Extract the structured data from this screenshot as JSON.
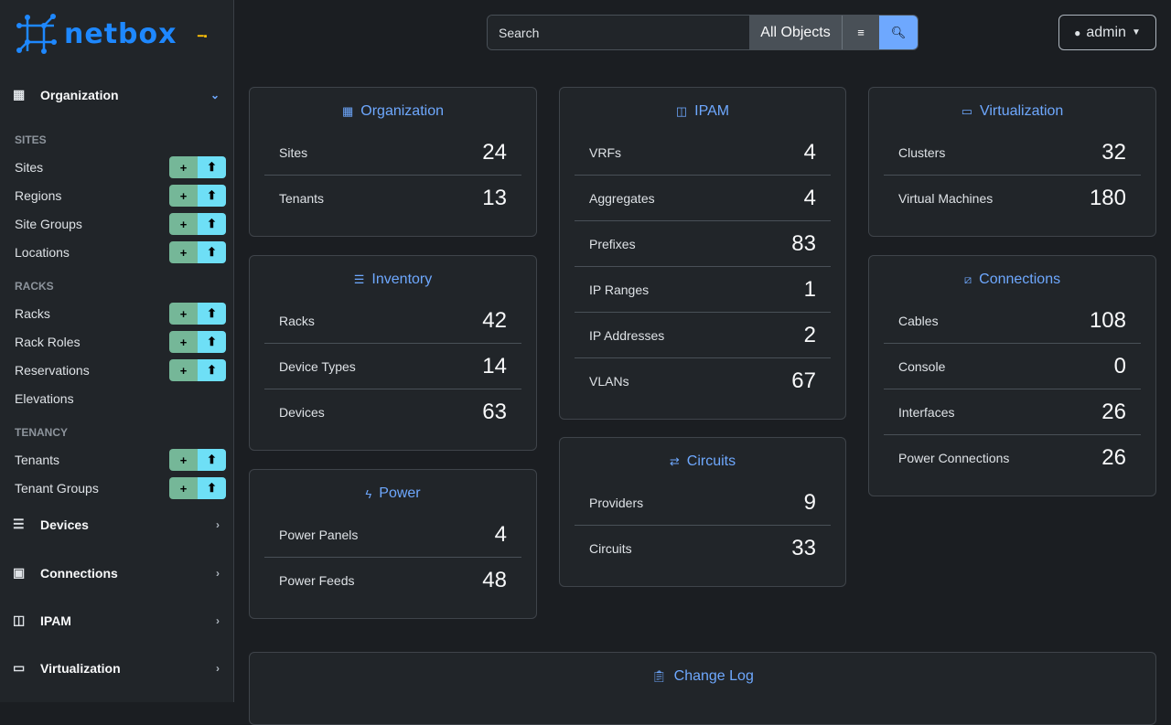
{
  "brand": {
    "name": "netbox",
    "accent": "#1e88ff"
  },
  "search": {
    "placeholder": "Search",
    "scope": "All Objects"
  },
  "user": {
    "name": "admin"
  },
  "sidebar": {
    "organization": "Organization",
    "sections": [
      {
        "title": "SITES",
        "items": [
          {
            "label": "Sites",
            "actions": true
          },
          {
            "label": "Regions",
            "actions": true
          },
          {
            "label": "Site Groups",
            "actions": true
          },
          {
            "label": "Locations",
            "actions": true
          }
        ]
      },
      {
        "title": "RACKS",
        "items": [
          {
            "label": "Racks",
            "actions": true
          },
          {
            "label": "Rack Roles",
            "actions": true
          },
          {
            "label": "Reservations",
            "actions": true
          },
          {
            "label": "Elevations",
            "actions": false
          }
        ]
      },
      {
        "title": "TENANCY",
        "items": [
          {
            "label": "Tenants",
            "actions": true
          },
          {
            "label": "Tenant Groups",
            "actions": true
          }
        ]
      }
    ],
    "menus": [
      "Devices",
      "Connections",
      "IPAM",
      "Virtualization"
    ],
    "add_symbol": "+",
    "import_symbol": "⬆"
  },
  "cards": {
    "organization": {
      "title": "Organization",
      "rows": [
        {
          "label": "Sites",
          "value": "24"
        },
        {
          "label": "Tenants",
          "value": "13"
        }
      ]
    },
    "inventory": {
      "title": "Inventory",
      "rows": [
        {
          "label": "Racks",
          "value": "42"
        },
        {
          "label": "Device Types",
          "value": "14"
        },
        {
          "label": "Devices",
          "value": "63"
        }
      ]
    },
    "power": {
      "title": "Power",
      "rows": [
        {
          "label": "Power Panels",
          "value": "4"
        },
        {
          "label": "Power Feeds",
          "value": "48"
        }
      ]
    },
    "ipam": {
      "title": "IPAM",
      "rows": [
        {
          "label": "VRFs",
          "value": "4"
        },
        {
          "label": "Aggregates",
          "value": "4"
        },
        {
          "label": "Prefixes",
          "value": "83"
        },
        {
          "label": "IP Ranges",
          "value": "1"
        },
        {
          "label": "IP Addresses",
          "value": "2"
        },
        {
          "label": "VLANs",
          "value": "67"
        }
      ]
    },
    "circuits": {
      "title": "Circuits",
      "rows": [
        {
          "label": "Providers",
          "value": "9"
        },
        {
          "label": "Circuits",
          "value": "33"
        }
      ]
    },
    "virtualization": {
      "title": "Virtualization",
      "rows": [
        {
          "label": "Clusters",
          "value": "32"
        },
        {
          "label": "Virtual Machines",
          "value": "180"
        }
      ]
    },
    "connections": {
      "title": "Connections",
      "rows": [
        {
          "label": "Cables",
          "value": "108"
        },
        {
          "label": "Console",
          "value": "0"
        },
        {
          "label": "Interfaces",
          "value": "26"
        },
        {
          "label": "Power Connections",
          "value": "26"
        }
      ]
    },
    "changelog": {
      "title": "Change Log"
    }
  }
}
